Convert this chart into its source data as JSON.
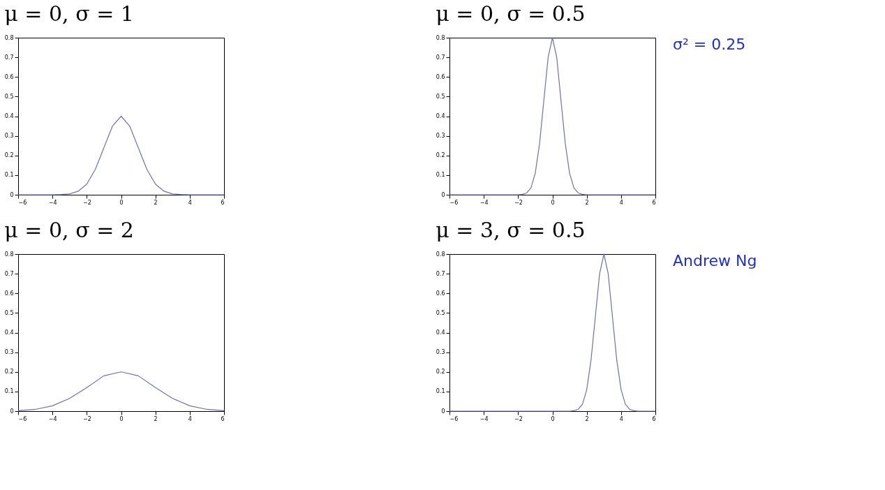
{
  "chart_data": [
    {
      "type": "line",
      "title": "μ = 0, σ = 1",
      "color": "#7070b0",
      "x": [
        -6,
        -5,
        -4,
        -3.5,
        -3,
        -2.5,
        -2,
        -1.5,
        -1,
        -0.5,
        0,
        0.5,
        1,
        1.5,
        2,
        2.5,
        3,
        3.5,
        4,
        5,
        6
      ],
      "values": [
        0,
        0,
        0,
        0.001,
        0.004,
        0.018,
        0.054,
        0.13,
        0.24,
        0.35,
        0.4,
        0.35,
        0.24,
        0.13,
        0.054,
        0.018,
        0.004,
        0.001,
        0,
        0,
        0
      ],
      "xlim": [
        -6,
        6
      ],
      "ylim": [
        0,
        0.8
      ],
      "xticks": [
        -6,
        -4,
        -2,
        0,
        2,
        4,
        6
      ],
      "yticks": [
        0,
        0.1,
        0.2,
        0.3,
        0.4,
        0.5,
        0.6,
        0.7,
        0.8
      ],
      "grid": false
    },
    {
      "type": "line",
      "title": "μ = 0, σ = 0.5",
      "color": "#7070b0",
      "x": [
        -6,
        -4,
        -2,
        -1.75,
        -1.5,
        -1.25,
        -1,
        -0.75,
        -0.5,
        -0.25,
        0,
        0.25,
        0.5,
        0.75,
        1,
        1.25,
        1.5,
        1.75,
        2,
        4,
        6
      ],
      "values": [
        0,
        0,
        0,
        0.002,
        0.009,
        0.035,
        0.11,
        0.26,
        0.48,
        0.7,
        0.8,
        0.7,
        0.48,
        0.26,
        0.11,
        0.035,
        0.009,
        0.002,
        0,
        0,
        0
      ],
      "xlim": [
        -6,
        6
      ],
      "ylim": [
        0,
        0.8
      ],
      "xticks": [
        -6,
        -4,
        -2,
        0,
        2,
        4,
        6
      ],
      "yticks": [
        0,
        0.1,
        0.2,
        0.3,
        0.4,
        0.5,
        0.6,
        0.7,
        0.8
      ],
      "grid": false,
      "annotations": [
        "σ² = 0.25"
      ]
    },
    {
      "type": "line",
      "title": "μ = 0, σ = 2",
      "color": "#7070b0",
      "x": [
        -6,
        -5,
        -4,
        -3,
        -2,
        -1,
        0,
        1,
        2,
        3,
        4,
        5,
        6
      ],
      "values": [
        0.002,
        0.009,
        0.027,
        0.065,
        0.12,
        0.18,
        0.2,
        0.18,
        0.12,
        0.065,
        0.027,
        0.009,
        0.002
      ],
      "xlim": [
        -6,
        6
      ],
      "ylim": [
        0,
        0.8
      ],
      "xticks": [
        -6,
        -4,
        -2,
        0,
        2,
        4,
        6
      ],
      "yticks": [
        0,
        0.1,
        0.2,
        0.3,
        0.4,
        0.5,
        0.6,
        0.7,
        0.8
      ],
      "grid": false
    },
    {
      "type": "line",
      "title": "μ = 3, σ = 0.5",
      "color": "#7070b0",
      "x": [
        -6,
        -2,
        0,
        1,
        1.25,
        1.5,
        1.75,
        2,
        2.25,
        2.5,
        2.75,
        3,
        3.25,
        3.5,
        3.75,
        4,
        4.25,
        4.5,
        4.75,
        5,
        6
      ],
      "values": [
        0,
        0,
        0,
        0,
        0.002,
        0.009,
        0.035,
        0.11,
        0.26,
        0.48,
        0.7,
        0.8,
        0.7,
        0.48,
        0.26,
        0.11,
        0.035,
        0.009,
        0.002,
        0,
        0
      ],
      "xlim": [
        -6,
        6
      ],
      "ylim": [
        0,
        0.8
      ],
      "xticks": [
        -6,
        -4,
        -2,
        0,
        2,
        4,
        6
      ],
      "yticks": [
        0,
        0.1,
        0.2,
        0.3,
        0.4,
        0.5,
        0.6,
        0.7,
        0.8
      ],
      "grid": false,
      "annotations": [
        "Andrew Ng"
      ]
    }
  ]
}
